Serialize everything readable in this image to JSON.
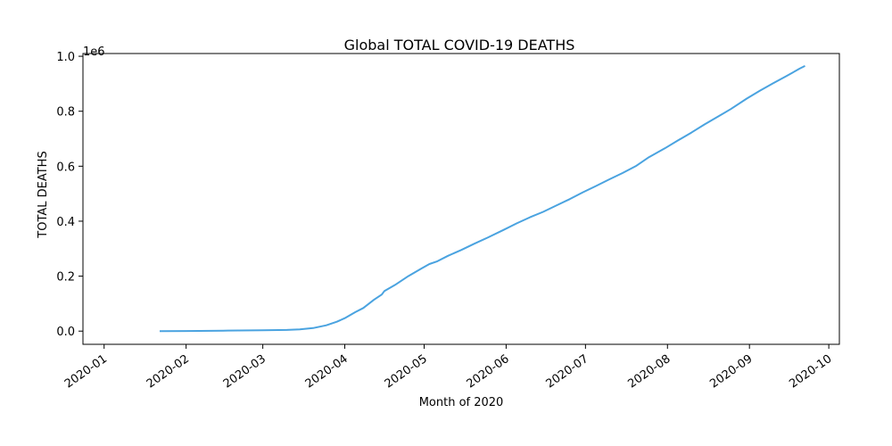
{
  "chart_data": {
    "type": "line",
    "title": "Global TOTAL COVID-19 DEATHS",
    "xlabel": "Month of 2020",
    "ylabel": "TOTAL DEATHS",
    "y_offset_label": "1e6",
    "xlim": [
      "2019-12-24",
      "2020-10-05"
    ],
    "ylim": [
      -48000,
      1010000
    ],
    "grid": false,
    "x_ticks": [
      {
        "date": "2020-01-01",
        "label": "2020-01"
      },
      {
        "date": "2020-02-01",
        "label": "2020-02"
      },
      {
        "date": "2020-03-01",
        "label": "2020-03"
      },
      {
        "date": "2020-04-01",
        "label": "2020-04"
      },
      {
        "date": "2020-05-01",
        "label": "2020-05"
      },
      {
        "date": "2020-06-01",
        "label": "2020-06"
      },
      {
        "date": "2020-07-01",
        "label": "2020-07"
      },
      {
        "date": "2020-08-01",
        "label": "2020-08"
      },
      {
        "date": "2020-09-01",
        "label": "2020-09"
      },
      {
        "date": "2020-10-01",
        "label": "2020-10"
      }
    ],
    "y_ticks": [
      {
        "value": 0,
        "label": "0.0"
      },
      {
        "value": 200000,
        "label": "0.2"
      },
      {
        "value": 400000,
        "label": "0.4"
      },
      {
        "value": 600000,
        "label": "0.6"
      },
      {
        "value": 800000,
        "label": "0.8"
      },
      {
        "value": 1000000,
        "label": "1.0"
      }
    ],
    "series": [
      {
        "color": "#4aa3e0",
        "points": [
          [
            "2020-01-22",
            17
          ],
          [
            "2020-02-01",
            260
          ],
          [
            "2020-02-15",
            1700
          ],
          [
            "2020-03-01",
            3000
          ],
          [
            "2020-03-10",
            4300
          ],
          [
            "2020-03-15",
            6500
          ],
          [
            "2020-03-20",
            11000
          ],
          [
            "2020-03-25",
            21000
          ],
          [
            "2020-03-29",
            34000
          ],
          [
            "2020-04-01",
            47000
          ],
          [
            "2020-04-05",
            69000
          ],
          [
            "2020-04-08",
            84000
          ],
          [
            "2020-04-12",
            114000
          ],
          [
            "2020-04-15",
            133000
          ],
          [
            "2020-04-16",
            146000
          ],
          [
            "2020-04-20",
            168000
          ],
          [
            "2020-04-25",
            200000
          ],
          [
            "2020-04-30",
            228000
          ],
          [
            "2020-05-03",
            244000
          ],
          [
            "2020-05-06",
            254000
          ],
          [
            "2020-05-10",
            274000
          ],
          [
            "2020-05-15",
            295000
          ],
          [
            "2020-05-20",
            318000
          ],
          [
            "2020-05-25",
            340000
          ],
          [
            "2020-05-31",
            368000
          ],
          [
            "2020-06-05",
            392000
          ],
          [
            "2020-06-10",
            414000
          ],
          [
            "2020-06-15",
            434000
          ],
          [
            "2020-06-20",
            457000
          ],
          [
            "2020-06-25",
            480000
          ],
          [
            "2020-06-30",
            505000
          ],
          [
            "2020-07-05",
            528000
          ],
          [
            "2020-07-10",
            552000
          ],
          [
            "2020-07-15",
            575000
          ],
          [
            "2020-07-20",
            600000
          ],
          [
            "2020-07-25",
            633000
          ],
          [
            "2020-07-31",
            665000
          ],
          [
            "2020-08-05",
            694000
          ],
          [
            "2020-08-10",
            722000
          ],
          [
            "2020-08-15",
            752000
          ],
          [
            "2020-08-20",
            780000
          ],
          [
            "2020-08-25",
            808000
          ],
          [
            "2020-08-31",
            846000
          ],
          [
            "2020-09-05",
            875000
          ],
          [
            "2020-09-10",
            902000
          ],
          [
            "2020-09-15",
            928000
          ],
          [
            "2020-09-20",
            955000
          ],
          [
            "2020-09-22",
            965000
          ]
        ]
      }
    ]
  }
}
